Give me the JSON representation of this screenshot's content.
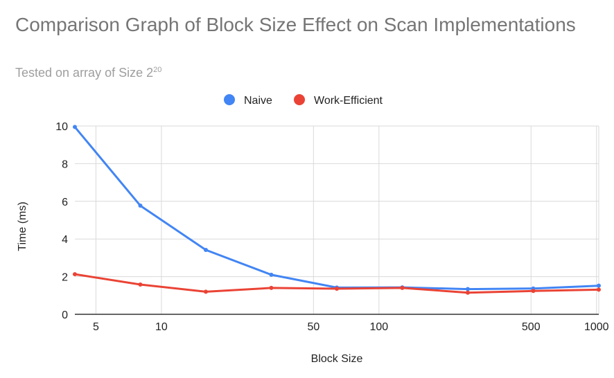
{
  "chart_data": {
    "type": "line",
    "title": "Comparison Graph of Block Size Effect on Scan Implementations",
    "subtitle_base": "Tested on array of Size 2",
    "subtitle_exp": "20",
    "xlabel": "Block Size",
    "ylabel": "Time (ms)",
    "x_scale": "log",
    "xlim": [
      4,
      1024
    ],
    "ylim": [
      0,
      10
    ],
    "x_ticks": [
      5,
      10,
      50,
      100,
      500,
      1000
    ],
    "y_ticks": [
      0,
      2,
      4,
      6,
      8,
      10
    ],
    "grid": true,
    "legend_position": "top",
    "x": [
      4,
      8,
      16,
      32,
      64,
      128,
      256,
      512,
      1024
    ],
    "series": [
      {
        "name": "Naive",
        "color": "#4285f4",
        "values": [
          9.95,
          5.77,
          3.42,
          2.1,
          1.42,
          1.43,
          1.34,
          1.37,
          1.52
        ]
      },
      {
        "name": "Work-Efficient",
        "color": "#ea4335",
        "values": [
          2.13,
          1.58,
          1.2,
          1.4,
          1.36,
          1.4,
          1.15,
          1.24,
          1.31
        ]
      }
    ]
  }
}
